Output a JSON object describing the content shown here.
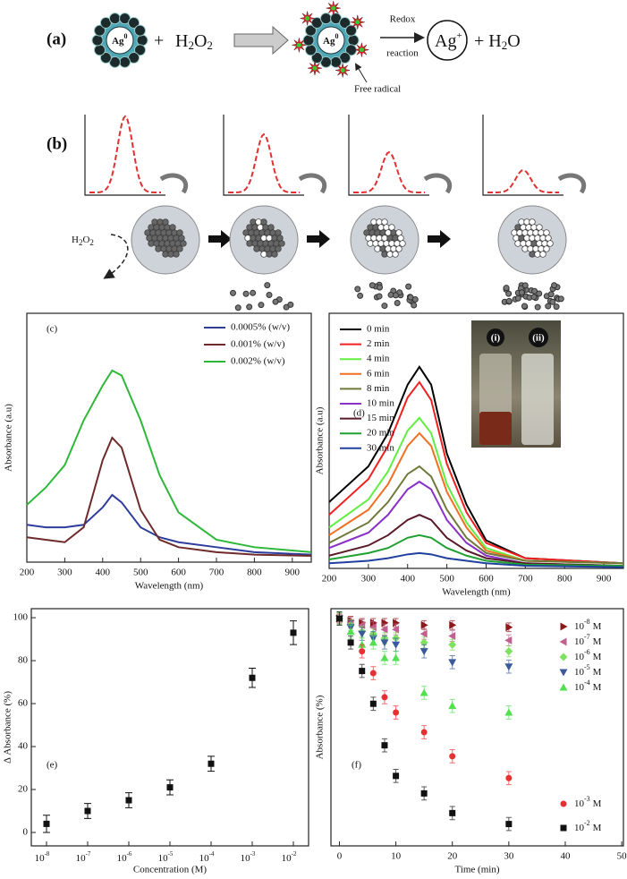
{
  "diagram": {
    "a_label": "(a)",
    "ag0": [
      "Ag",
      "0"
    ],
    "plus": "+",
    "h2o2": [
      "H",
      "2",
      "O",
      "2"
    ],
    "redox": [
      "Redox",
      "reaction"
    ],
    "ag_ion": [
      "Ag",
      "+"
    ],
    "plus_h2o": [
      "+ H",
      "2",
      "O"
    ],
    "free_radical": "Free radical",
    "b_label": "(b)",
    "b_h2o2": [
      "H",
      "2",
      "O",
      "2"
    ]
  },
  "chart_data": [
    {
      "type": "line",
      "panel_label": "(c)",
      "x_label": "Wavelength (nm)",
      "y_label": "Absorbance (a.u)",
      "legend": "upper right",
      "x": [
        200,
        250,
        300,
        350,
        400,
        425,
        450,
        500,
        550,
        600,
        700,
        800,
        950
      ],
      "xlim": [
        200,
        950
      ],
      "xticks": [
        200,
        300,
        400,
        500,
        600,
        700,
        800,
        900
      ],
      "ylim": [
        0,
        1
      ],
      "series": [
        {
          "name": "0.0005% (w/v)",
          "color": "#2e3d9c",
          "values": [
            0.15,
            0.14,
            0.14,
            0.15,
            0.22,
            0.27,
            0.24,
            0.14,
            0.1,
            0.08,
            0.06,
            0.04,
            0.03
          ]
        },
        {
          "name": "0.001% (w/v)",
          "color": "#6e2a2a",
          "values": [
            0.1,
            0.09,
            0.08,
            0.14,
            0.41,
            0.5,
            0.46,
            0.21,
            0.09,
            0.06,
            0.04,
            0.03,
            0.025
          ]
        },
        {
          "name": "0.002% (w/v)",
          "color": "#2db83a",
          "values": [
            0.23,
            0.3,
            0.39,
            0.57,
            0.71,
            0.77,
            0.75,
            0.57,
            0.35,
            0.2,
            0.09,
            0.06,
            0.04
          ]
        }
      ]
    },
    {
      "type": "line",
      "panel_label": "(d)",
      "x_label": "Wavelength (nm)",
      "y_label": "Absorbance (a.u)",
      "legend": "upper left",
      "inset_labels": [
        "(i)",
        "(ii)"
      ],
      "x": [
        200,
        300,
        350,
        400,
        430,
        460,
        500,
        550,
        600,
        700,
        950
      ],
      "xlim": [
        200,
        950
      ],
      "xticks": [
        200,
        300,
        400,
        500,
        600,
        700,
        800,
        900
      ],
      "ylim": [
        0,
        1
      ],
      "series": [
        {
          "name": "0 min",
          "color": "#000000",
          "values": [
            0.26,
            0.4,
            0.53,
            0.72,
            0.79,
            0.72,
            0.45,
            0.25,
            0.11,
            0.04,
            0.02
          ]
        },
        {
          "name": "2 min",
          "color": "#f02020",
          "values": [
            0.21,
            0.35,
            0.48,
            0.67,
            0.73,
            0.66,
            0.41,
            0.22,
            0.1,
            0.04,
            0.02
          ]
        },
        {
          "name": "4 min",
          "color": "#60ee40",
          "values": [
            0.16,
            0.27,
            0.38,
            0.54,
            0.59,
            0.53,
            0.33,
            0.18,
            0.08,
            0.03,
            0.02
          ]
        },
        {
          "name": "6 min",
          "color": "#f07020",
          "values": [
            0.13,
            0.23,
            0.33,
            0.48,
            0.53,
            0.48,
            0.3,
            0.16,
            0.07,
            0.03,
            0.02
          ]
        },
        {
          "name": "8 min",
          "color": "#6f7a3a",
          "values": [
            0.1,
            0.18,
            0.26,
            0.37,
            0.4,
            0.36,
            0.23,
            0.12,
            0.06,
            0.03,
            0.02
          ]
        },
        {
          "name": "10 min",
          "color": "#8a30c8",
          "values": [
            0.08,
            0.14,
            0.21,
            0.31,
            0.34,
            0.31,
            0.19,
            0.1,
            0.05,
            0.02,
            0.01
          ]
        },
        {
          "name": "15 min",
          "color": "#5a1a2a",
          "values": [
            0.05,
            0.09,
            0.13,
            0.19,
            0.21,
            0.19,
            0.12,
            0.07,
            0.04,
            0.02,
            0.01
          ]
        },
        {
          "name": "20 min",
          "color": "#20a030",
          "values": [
            0.035,
            0.06,
            0.08,
            0.12,
            0.13,
            0.12,
            0.08,
            0.05,
            0.03,
            0.015,
            0.01
          ]
        },
        {
          "name": "30 min",
          "color": "#2040a0",
          "values": [
            0.02,
            0.03,
            0.04,
            0.055,
            0.06,
            0.055,
            0.04,
            0.03,
            0.02,
            0.01,
            0.005
          ]
        }
      ]
    },
    {
      "type": "errorbar",
      "panel_label": "(e)",
      "x_label": "Concentration (M)",
      "y_label": "Δ Absorbance (%)",
      "color": "#111111",
      "marker": "square",
      "categories": [
        {
          "base": "10",
          "exponent": "-8"
        },
        {
          "base": "10",
          "exponent": "-7"
        },
        {
          "base": "10",
          "exponent": "-6"
        },
        {
          "base": "10",
          "exponent": "-5"
        },
        {
          "base": "10",
          "exponent": "-4"
        },
        {
          "base": "10",
          "exponent": "-3"
        },
        {
          "base": "10",
          "exponent": "-2"
        }
      ],
      "values": [
        4,
        10,
        15,
        21,
        32,
        72,
        93
      ],
      "errors": [
        4,
        3.5,
        3.5,
        3.5,
        3.5,
        4.5,
        5.5
      ],
      "ylim": [
        -6.25,
        104.2
      ],
      "yticks": [
        0,
        20,
        40,
        60,
        80,
        100
      ]
    },
    {
      "type": "scatter",
      "panel_label": "(f)",
      "x_label": "Time (min)",
      "y_label": "Absorbance (%)",
      "xlim": [
        -1.5,
        50.3
      ],
      "xticks": [
        0,
        10,
        20,
        30,
        40,
        50
      ],
      "ylim": [
        -4,
        104.5
      ],
      "series": [
        {
          "label": {
            "base": "10",
            "exponent": "-8",
            "unit": "M"
          },
          "color": "#8b1a1a",
          "marker": "triangle-right",
          "error": 2,
          "x": [
            0,
            2,
            4,
            6,
            8,
            10,
            15,
            20,
            30
          ],
          "values": [
            100,
            99,
            98,
            98,
            98,
            98,
            97,
            97,
            96
          ]
        },
        {
          "label": {
            "base": "10",
            "exponent": "-7",
            "unit": "M"
          },
          "color": "#c06090",
          "marker": "triangle-left",
          "error": 2.5,
          "x": [
            0,
            2,
            4,
            6,
            8,
            10,
            15,
            20,
            30
          ],
          "values": [
            100,
            98,
            97,
            96,
            95,
            95,
            93,
            92,
            90
          ]
        },
        {
          "label": {
            "base": "10",
            "exponent": "-6",
            "unit": "M"
          },
          "color": "#80e060",
          "marker": "diamond",
          "error": 2.5,
          "x": [
            0,
            2,
            4,
            6,
            8,
            10,
            15,
            20,
            30
          ],
          "values": [
            100,
            97,
            94,
            93,
            91,
            91,
            89,
            88,
            85
          ]
        },
        {
          "label": {
            "base": "10",
            "exponent": "-5",
            "unit": "M"
          },
          "color": "#3a5a9a",
          "marker": "triangle-down",
          "error": 3,
          "x": [
            0,
            2,
            4,
            6,
            8,
            10,
            15,
            20,
            30
          ],
          "values": [
            100,
            96,
            93,
            91,
            89,
            88,
            85,
            80,
            78
          ]
        },
        {
          "label": {
            "base": "10",
            "exponent": "-4",
            "unit": "M"
          },
          "color": "#50e050",
          "marker": "triangle-up",
          "error": 3,
          "x": [
            0,
            2,
            4,
            6,
            8,
            10,
            15,
            20,
            30
          ],
          "values": [
            100,
            94,
            88,
            89,
            82,
            82,
            66,
            60,
            57
          ]
        },
        {
          "label": {
            "base": "10",
            "exponent": "-3",
            "unit": "M"
          },
          "color": "#e83030",
          "marker": "circle",
          "error": 3,
          "x": [
            4,
            6,
            8,
            10,
            15,
            20,
            30
          ],
          "values": [
            85,
            75,
            64,
            57,
            48,
            37,
            27
          ]
        },
        {
          "label": {
            "base": "10",
            "exponent": "-2",
            "unit": "M"
          },
          "color": "#111111",
          "marker": "square",
          "error": 3,
          "x": [
            0,
            2,
            4,
            6,
            8,
            10,
            15,
            20,
            30
          ],
          "values": [
            100,
            89,
            76,
            61,
            42,
            28,
            20,
            11,
            6
          ]
        }
      ]
    }
  ]
}
